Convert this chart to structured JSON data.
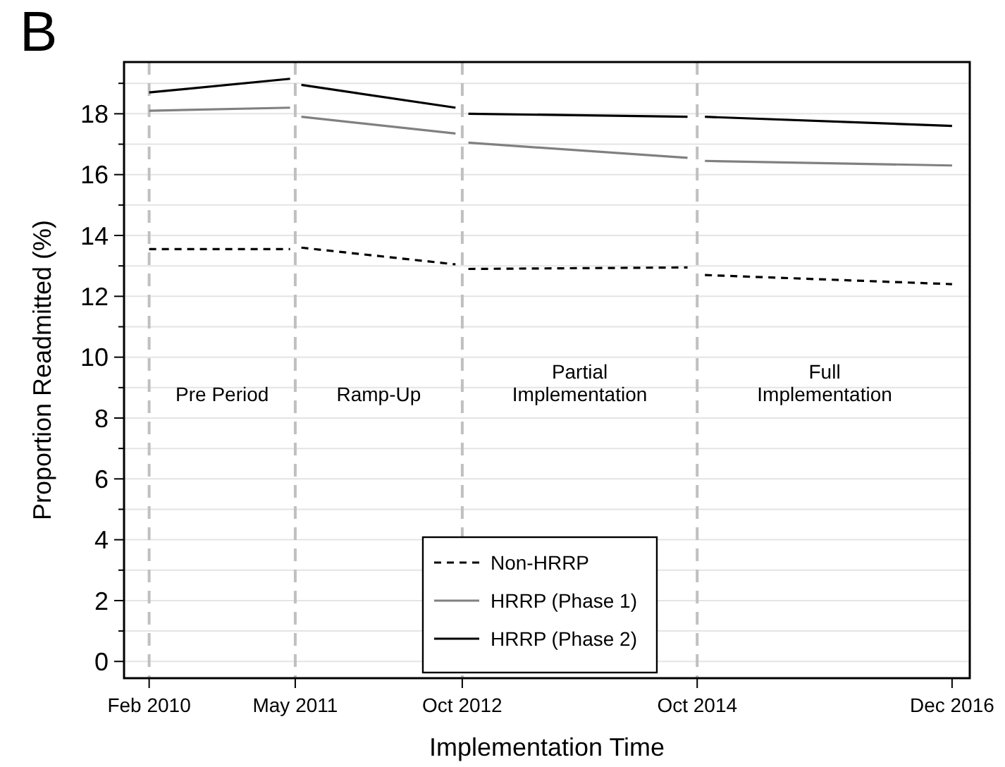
{
  "chart_data": {
    "type": "line",
    "xlabel": "Implementation Time",
    "ylabel": "Proportion Readmitted (%)",
    "annotations": [
      "B",
      "Pre Period",
      "Ramp-Up",
      "Partial\nImplementation",
      "Full\nImplementation"
    ],
    "series": [
      {
        "name": "Non-HRRP",
        "color": "#000000",
        "line_style": "dashed",
        "x": [
          "2010-02",
          "2011-04-15"
        ],
        "values": [
          13.55,
          13.55
        ]
      },
      {
        "name": "HRRP (Phase 1)",
        "color": "#808080",
        "line_style": "solid",
        "x": [
          "2010-02",
          "2011-04-15"
        ],
        "values": [
          18.1,
          18.2
        ]
      },
      {
        "name": "HRRP (Phase 2)",
        "color": "#000000",
        "line_style": "solid",
        "x": [
          "2010-02",
          "2011-04-15"
        ],
        "values": [
          18.7,
          19.15
        ]
      },
      {
        "color": "#000000",
        "line_style": "dashed",
        "x": [
          "2011-05-20",
          "2012-09-10"
        ],
        "values": [
          13.6,
          13.05
        ]
      },
      {
        "color": "#808080",
        "line_style": "solid",
        "x": [
          "2011-05-20",
          "2012-09-10"
        ],
        "values": [
          17.9,
          17.35
        ]
      },
      {
        "color": "#000000",
        "line_style": "solid",
        "x": [
          "2011-05-20",
          "2012-09-10"
        ],
        "values": [
          18.95,
          18.2
        ]
      },
      {
        "color": "#000000",
        "line_style": "dashed",
        "x": [
          "2012-10-20",
          "2014-09-01"
        ],
        "values": [
          12.9,
          12.95
        ]
      },
      {
        "color": "#808080",
        "line_style": "solid",
        "x": [
          "2012-10-20",
          "2014-09-01"
        ],
        "values": [
          17.05,
          16.55
        ]
      },
      {
        "color": "#000000",
        "line_style": "solid",
        "x": [
          "2012-10-20",
          "2014-09-01"
        ],
        "values": [
          18.0,
          17.9
        ]
      },
      {
        "color": "#000000",
        "line_style": "dashed",
        "x": [
          "2014-10-25",
          "2016-12"
        ],
        "values": [
          12.7,
          12.4
        ]
      },
      {
        "color": "#808080",
        "line_style": "solid",
        "x": [
          "2014-10-25",
          "2016-12"
        ],
        "values": [
          16.45,
          16.3
        ]
      },
      {
        "color": "#000000",
        "line_style": "solid",
        "x": [
          "2014-10-25",
          "2016-12"
        ],
        "values": [
          17.9,
          17.6
        ]
      }
    ],
    "ref_lines": [
      {
        "axis": "x",
        "value": "2010-02",
        "color": "#c0c0c0",
        "line_style": "dashed"
      },
      {
        "axis": "x",
        "value": "2011-05",
        "color": "#c0c0c0",
        "line_style": "dashed"
      },
      {
        "axis": "x",
        "value": "2012-10",
        "color": "#c0c0c0",
        "line_style": "dashed"
      },
      {
        "axis": "x",
        "value": "2014-10",
        "color": "#c0c0c0",
        "line_style": "dashed"
      }
    ],
    "xlim": [
      "2009-11-15",
      "2017-01-25"
    ],
    "xticks": [
      {
        "value": "2010-02",
        "label": "Feb 2010"
      },
      {
        "value": "2011-05",
        "label": "May 2011"
      },
      {
        "value": "2012-10",
        "label": "Oct 2012"
      },
      {
        "value": "2014-10",
        "label": "Oct 2014"
      },
      {
        "value": "2016-12",
        "label": "Dec 2016"
      }
    ],
    "ylim": [
      -0.55,
      19.7
    ],
    "yticks": [
      0,
      {
        "value": 1,
        "label": null
      },
      2,
      {
        "value": 3,
        "label": null
      },
      4,
      {
        "value": 5,
        "label": null
      },
      6,
      {
        "value": 7,
        "label": null
      },
      8,
      {
        "value": 9,
        "label": null
      },
      10,
      {
        "value": 11,
        "label": null
      },
      12,
      {
        "value": 13,
        "label": null
      },
      14,
      {
        "value": 15,
        "label": null
      },
      16,
      {
        "value": 17,
        "label": null
      },
      18,
      {
        "value": 19,
        "label": null
      }
    ],
    "grid": "y",
    "legend": "bottom",
    "marker": "none"
  }
}
